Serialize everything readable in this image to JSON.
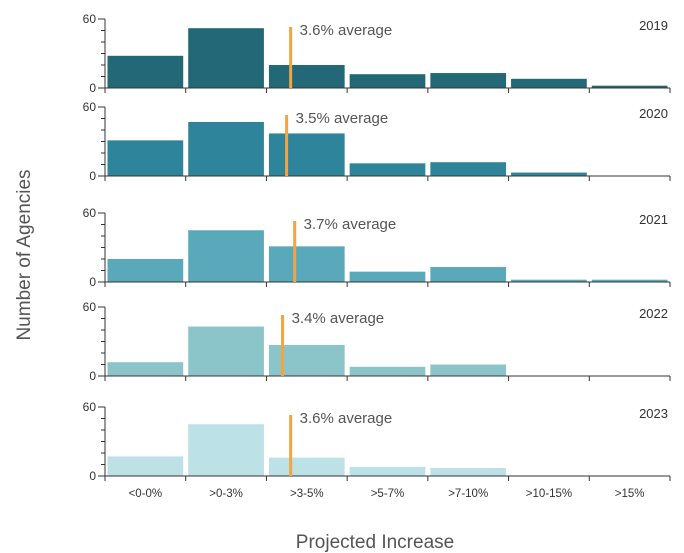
{
  "chart_data": {
    "type": "bar",
    "ylabel": "Number of Agencies",
    "xlabel": "Projected Increase",
    "categories": [
      "<0-0%",
      ">0-3%",
      ">3-5%",
      ">5-7%",
      ">7-10%",
      ">10-15%",
      ">15%"
    ],
    "ylim": [
      0,
      60
    ],
    "yticks": [
      "0",
      "60"
    ],
    "panels": [
      {
        "year": "2019",
        "values": [
          28,
          52,
          20,
          12,
          13,
          8,
          2
        ],
        "average_value": 3.6,
        "average_label": "3.6% average",
        "color": "#236877"
      },
      {
        "year": "2020",
        "values": [
          31,
          47,
          37,
          11,
          12,
          3,
          0
        ],
        "average_value": 3.5,
        "average_label": "3.5% average",
        "color": "#2E849B"
      },
      {
        "year": "2021",
        "values": [
          20,
          45,
          31,
          9,
          13,
          2,
          2
        ],
        "average_value": 3.7,
        "average_label": "3.7% average",
        "color": "#5AA9BA"
      },
      {
        "year": "2022",
        "values": [
          12,
          43,
          27,
          8,
          10,
          0,
          0
        ],
        "average_value": 3.4,
        "average_label": "3.4% average",
        "color": "#8CC5C9"
      },
      {
        "year": "2023",
        "values": [
          17,
          45,
          16,
          8,
          7,
          0,
          0
        ],
        "average_value": 3.6,
        "average_label": "3.6% average",
        "color": "#BCE1E6"
      }
    ],
    "average_marker_color": "#F2A541",
    "grid": false,
    "legend": "none"
  }
}
